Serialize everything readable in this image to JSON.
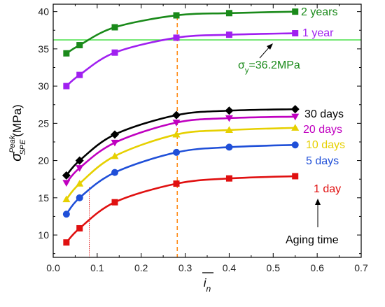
{
  "chart_data": {
    "type": "line",
    "xlabel_symbol": "i",
    "xlabel_sub": "n",
    "ylabel_symbol": "σ",
    "ylabel_sup": "Peak",
    "ylabel_sub": "SPE",
    "ylabel_unit": "(MPa)",
    "xlim": [
      0.0,
      0.7
    ],
    "ylim": [
      7,
      41
    ],
    "xticks": [
      "0.0",
      "0.1",
      "0.2",
      "0.3",
      "0.4",
      "0.5",
      "0.6",
      "0.7"
    ],
    "yticks": [
      "10",
      "15",
      "20",
      "25",
      "30",
      "35",
      "40"
    ],
    "xtick_values": [
      0.0,
      0.1,
      0.2,
      0.3,
      0.4,
      0.5,
      0.6,
      0.7
    ],
    "ytick_values": [
      10,
      15,
      20,
      25,
      30,
      35,
      40
    ],
    "series": [
      {
        "name": "2 years",
        "color": "#1a8a1a",
        "marker": "square",
        "x": [
          0.03,
          0.06,
          0.14,
          0.28,
          0.4,
          0.55
        ],
        "y": [
          34.4,
          35.5,
          37.9,
          39.5,
          39.8,
          40.0
        ]
      },
      {
        "name": "1 year",
        "color": "#a020f0",
        "marker": "square",
        "x": [
          0.03,
          0.06,
          0.14,
          0.28,
          0.4,
          0.55
        ],
        "y": [
          30.0,
          31.5,
          34.5,
          36.5,
          36.9,
          37.1
        ]
      },
      {
        "name": "30 days",
        "color": "#000000",
        "marker": "diamond",
        "x": [
          0.03,
          0.06,
          0.14,
          0.28,
          0.4,
          0.55
        ],
        "y": [
          18.0,
          20.0,
          23.5,
          26.1,
          26.7,
          26.9
        ]
      },
      {
        "name": "20 days",
        "color": "#c000c0",
        "marker": "triangle-down",
        "x": [
          0.03,
          0.06,
          0.14,
          0.28,
          0.4,
          0.55
        ],
        "y": [
          17.0,
          19.0,
          22.4,
          25.1,
          25.7,
          25.9
        ]
      },
      {
        "name": "10 days",
        "color": "#e6d000",
        "marker": "triangle-up",
        "x": [
          0.03,
          0.06,
          0.14,
          0.28,
          0.4,
          0.55
        ],
        "y": [
          14.8,
          16.9,
          20.6,
          23.5,
          24.1,
          24.4
        ]
      },
      {
        "name": "5 days",
        "color": "#1f4fd8",
        "marker": "circle",
        "x": [
          0.03,
          0.06,
          0.14,
          0.28,
          0.4,
          0.55
        ],
        "y": [
          12.8,
          15.0,
          18.4,
          21.1,
          21.8,
          22.1
        ]
      },
      {
        "name": "1 day",
        "color": "#e01010",
        "marker": "square",
        "x": [
          0.03,
          0.06,
          0.14,
          0.28,
          0.4,
          0.55
        ],
        "y": [
          9.0,
          10.9,
          14.4,
          16.9,
          17.6,
          17.9
        ]
      }
    ],
    "annotations": {
      "yield_line": {
        "value": 36.2,
        "color": "#33dd33",
        "label_symbol": "σ",
        "label_sub": "y",
        "label_rest": "=36.2MPa"
      },
      "vline_red": {
        "x": 0.082,
        "color": "#e01010"
      },
      "vline_orange": {
        "x": 0.282,
        "color": "#ff8c1a"
      },
      "aging_time_label": "Aging time"
    }
  }
}
